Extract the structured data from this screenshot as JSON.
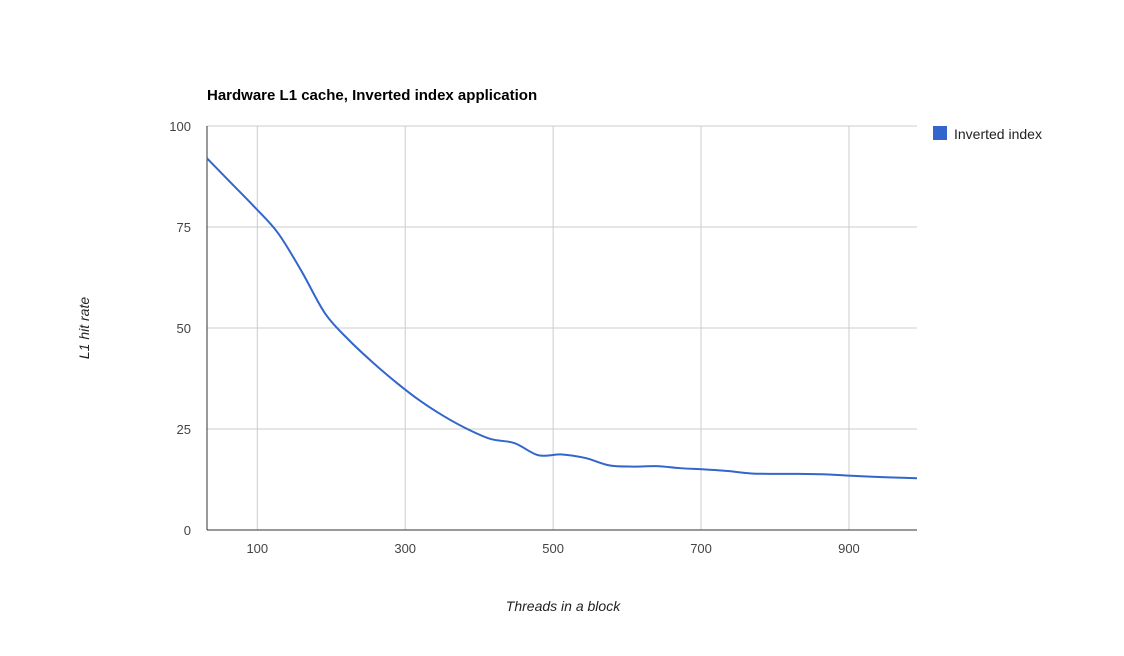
{
  "chart_data": {
    "type": "line",
    "title": "Hardware L1 cache, Inverted index application",
    "xlabel": "Threads in a block",
    "ylabel": "L1 hit rate",
    "xlim": [
      32,
      992
    ],
    "ylim": [
      0,
      100
    ],
    "x_ticks": [
      100,
      300,
      500,
      700,
      900
    ],
    "y_ticks": [
      0,
      25,
      50,
      75,
      100
    ],
    "grid": true,
    "legend_position": "right",
    "series": [
      {
        "name": "Inverted index",
        "color": "#3366cc",
        "x": [
          32,
          64,
          96,
          128,
          160,
          192,
          224,
          256,
          288,
          320,
          352,
          384,
          416,
          448,
          480,
          512,
          544,
          576,
          608,
          640,
          672,
          704,
          736,
          768,
          800,
          832,
          864,
          896,
          928,
          960,
          992
        ],
        "values": [
          92,
          86,
          80,
          73.5,
          64,
          53.5,
          47,
          41.5,
          36.5,
          32,
          28.2,
          25,
          22.5,
          21.5,
          18.5,
          18.7,
          17.8,
          16,
          15.7,
          15.8,
          15.3,
          15,
          14.6,
          14,
          13.9,
          13.9,
          13.8,
          13.5,
          13.2,
          13,
          12.8
        ]
      }
    ]
  }
}
